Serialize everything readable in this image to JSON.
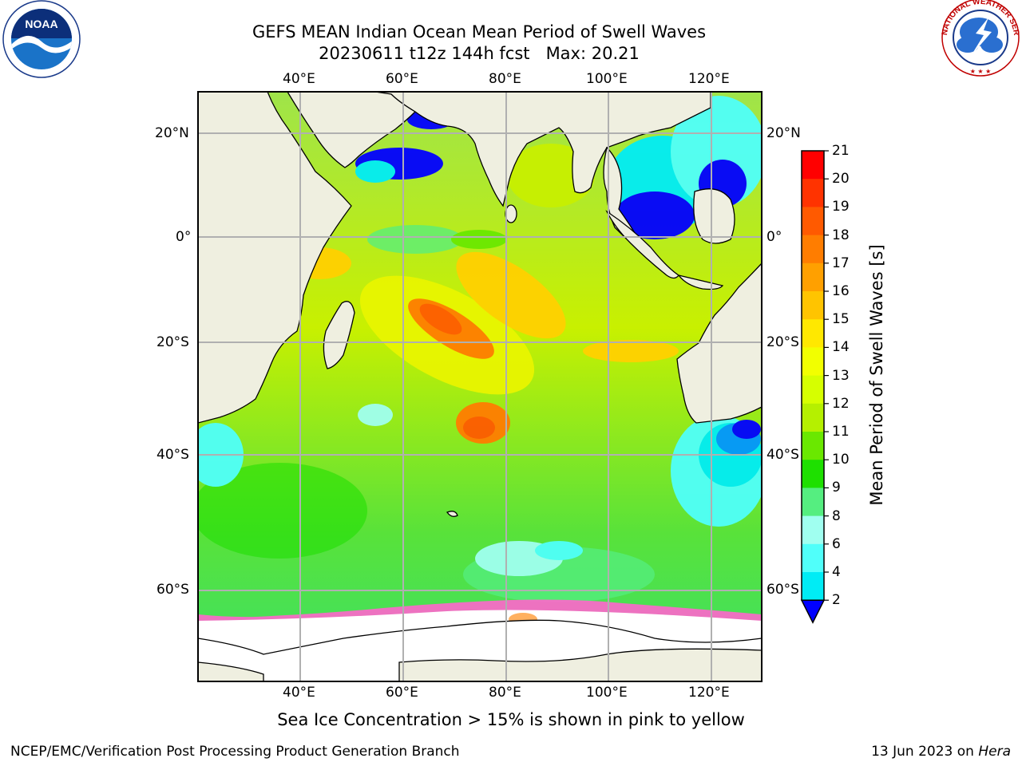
{
  "header": {
    "title_line1": "GEFS MEAN Indian Ocean Mean Period of Swell Waves",
    "title_line2": "20230611 t12z 144h fcst   Max: 20.21"
  },
  "logos": {
    "left": "noaa-logo",
    "left_text": "NOAA",
    "right": "nws-logo",
    "right_text": "NATIONAL WEATHER SERVICE"
  },
  "map": {
    "lon_labels": [
      "40°E",
      "60°E",
      "80°E",
      "100°E",
      "120°E"
    ],
    "lat_labels": [
      "20°N",
      "0°",
      "20°S",
      "40°S",
      "60°S"
    ],
    "colors": {
      "land": "#efefe0",
      "coast": "#000000",
      "grid": "#b0b0b0",
      "ice": "#ffffff"
    }
  },
  "colorbar": {
    "title": "Mean Period of Swell Waves [s]",
    "ticks": [
      "21",
      "20",
      "19",
      "18",
      "17",
      "16",
      "15",
      "14",
      "13",
      "12",
      "11",
      "10",
      "9",
      "8",
      "6",
      "4",
      "2"
    ],
    "colors": [
      "#ff0000",
      "#ff3300",
      "#ff5a00",
      "#ff7d00",
      "#ffa000",
      "#ffc400",
      "#ffe800",
      "#f2ff00",
      "#d6ff00",
      "#b5f000",
      "#6ae800",
      "#1ee000",
      "#55ee80",
      "#a0fff0",
      "#50fffa",
      "#00ecf5",
      "#0096ff",
      "#0000ff"
    ]
  },
  "notes": {
    "ice": "Sea Ice Concentration > 15% is shown in pink to yellow"
  },
  "footer": {
    "left": "NCEP/EMC/Verification Post Processing Product Generation Branch",
    "right_prefix": "13 Jun 2023 on ",
    "right_host": "Hera"
  }
}
